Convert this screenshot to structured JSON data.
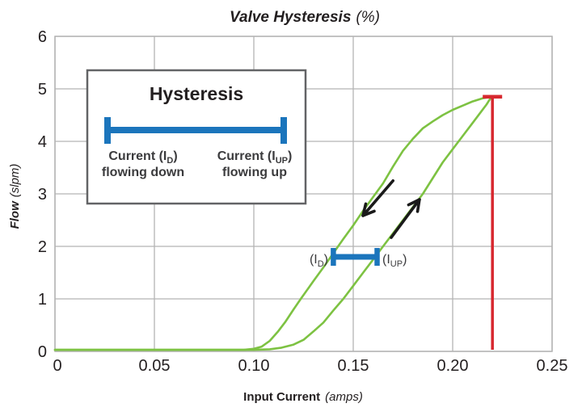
{
  "title": {
    "main": "Valve Hysteresis",
    "unit": "(%)"
  },
  "colors": {
    "curve_green": "#7dc242",
    "marker_red": "#d7282f",
    "hysteresis_blue": "#1b75bc",
    "grid_gray": "#b4b4b4",
    "text_dark": "#231f20",
    "arrow_black": "#1a1a1a",
    "legend_border_gray": "#636466"
  },
  "axes": {
    "x": {
      "label_main": "Input Current",
      "label_unit": "(amps)",
      "min": 0,
      "max": 0.25,
      "ticks": [
        {
          "label": "0",
          "value": 0
        },
        {
          "label": "0.05",
          "value": 0.05
        },
        {
          "label": "0.10",
          "value": 0.1
        },
        {
          "label": "0.15",
          "value": 0.15
        },
        {
          "label": "0.20",
          "value": 0.2
        },
        {
          "label": "0.25",
          "value": 0.25
        }
      ]
    },
    "y": {
      "label_main": "Flow",
      "label_unit": "(slpm)",
      "min": 0,
      "max": 6,
      "ticks": [
        {
          "label": "0",
          "value": 0
        },
        {
          "label": "1",
          "value": 1
        },
        {
          "label": "2",
          "value": 2
        },
        {
          "label": "3",
          "value": 3
        },
        {
          "label": "4",
          "value": 4
        },
        {
          "label": "5",
          "value": 5
        },
        {
          "label": "6",
          "value": 6
        }
      ]
    }
  },
  "legend_box": {
    "title": "Hysteresis",
    "left_label": {
      "pre": "Current (I",
      "sub": "D",
      "post": ")",
      "line2": "flowing down"
    },
    "right_label": {
      "pre": "Current (I",
      "sub": "UP",
      "post": ")",
      "line2": "flowing up"
    }
  },
  "plot_annotations": {
    "id_label": {
      "pre": "(I",
      "sub": "D",
      "post": ")"
    },
    "iup_label": {
      "pre": "(I",
      "sub": "UP",
      "post": ")"
    },
    "hysteresis_bar": {
      "flow": 1.8,
      "x_start": 0.14,
      "x_end": 0.162
    },
    "max_marker": {
      "x": 0.22,
      "flow": 4.85
    },
    "arrows": [
      {
        "id": "down-direction",
        "tail": [
          0.17,
          3.25
        ],
        "tip": [
          0.1549,
          2.585
        ]
      },
      {
        "id": "up-direction",
        "tail": [
          0.1691,
          2.169
        ],
        "tip": [
          0.1833,
          2.892
        ]
      }
    ]
  },
  "chart_data": {
    "type": "line",
    "title": "Valve Hysteresis (%)",
    "xlabel": "Input Current (amps)",
    "ylabel": "Flow (slpm)",
    "xlim": [
      0,
      0.25
    ],
    "ylim": [
      0,
      6
    ],
    "grid": true,
    "legend_position": "upper-left inset box",
    "series": [
      {
        "id": "up",
        "name": "Current flowing up (I_UP branch)",
        "points": [
          [
            0,
            0.03
          ],
          [
            0.04,
            0.03
          ],
          [
            0.08,
            0.03
          ],
          [
            0.1,
            0.03
          ],
          [
            0.108,
            0.04
          ],
          [
            0.114,
            0.07
          ],
          [
            0.12,
            0.13
          ],
          [
            0.125,
            0.22
          ],
          [
            0.13,
            0.38
          ],
          [
            0.135,
            0.55
          ],
          [
            0.14,
            0.78
          ],
          [
            0.145,
            1.0
          ],
          [
            0.15,
            1.25
          ],
          [
            0.155,
            1.5
          ],
          [
            0.16,
            1.75
          ],
          [
            0.165,
            2.0
          ],
          [
            0.17,
            2.25
          ],
          [
            0.175,
            2.5
          ],
          [
            0.18,
            2.75
          ],
          [
            0.185,
            3.0
          ],
          [
            0.19,
            3.3
          ],
          [
            0.195,
            3.6
          ],
          [
            0.2,
            3.85
          ],
          [
            0.205,
            4.1
          ],
          [
            0.21,
            4.35
          ],
          [
            0.214,
            4.55
          ],
          [
            0.217,
            4.7
          ],
          [
            0.2195,
            4.85
          ]
        ]
      },
      {
        "id": "down",
        "name": "Current flowing down (I_D branch)",
        "points": [
          [
            0,
            0.03
          ],
          [
            0.04,
            0.03
          ],
          [
            0.08,
            0.03
          ],
          [
            0.095,
            0.03
          ],
          [
            0.1,
            0.05
          ],
          [
            0.104,
            0.09
          ],
          [
            0.108,
            0.2
          ],
          [
            0.112,
            0.37
          ],
          [
            0.116,
            0.57
          ],
          [
            0.12,
            0.8
          ],
          [
            0.1236,
            1.0
          ],
          [
            0.13,
            1.34
          ],
          [
            0.135,
            1.6
          ],
          [
            0.14,
            1.87
          ],
          [
            0.145,
            2.14
          ],
          [
            0.15,
            2.4
          ],
          [
            0.155,
            2.68
          ],
          [
            0.16,
            2.94
          ],
          [
            0.165,
            3.2
          ],
          [
            0.17,
            3.52
          ],
          [
            0.175,
            3.82
          ],
          [
            0.18,
            4.05
          ],
          [
            0.185,
            4.25
          ],
          [
            0.19,
            4.38
          ],
          [
            0.195,
            4.5
          ],
          [
            0.2,
            4.6
          ],
          [
            0.205,
            4.68
          ],
          [
            0.21,
            4.76
          ],
          [
            0.215,
            4.82
          ],
          [
            0.2195,
            4.85
          ]
        ]
      },
      {
        "id": "max-current-marker",
        "name": "Maximum current marker (red)",
        "points": [
          [
            0.22,
            0
          ],
          [
            0.22,
            4.85
          ]
        ]
      }
    ]
  }
}
